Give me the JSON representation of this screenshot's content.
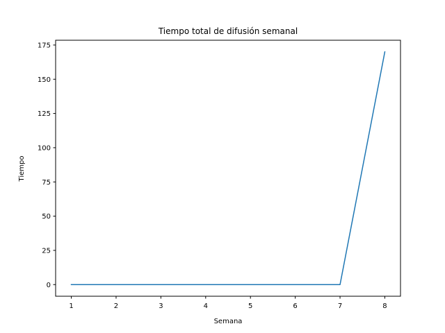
{
  "chart_data": {
    "type": "line",
    "title": "Tiempo total de difusión semanal",
    "xlabel": "Semana",
    "ylabel": "Tiempo",
    "x": [
      1,
      2,
      3,
      4,
      5,
      6,
      7,
      8
    ],
    "series": [
      {
        "values": [
          0,
          0,
          0,
          0,
          0,
          0,
          0,
          170
        ],
        "color": "#1f77b4"
      }
    ],
    "xlim": [
      0.65,
      8.35
    ],
    "ylim": [
      -8.5,
      178.5
    ],
    "xticks": [
      1,
      2,
      3,
      4,
      5,
      6,
      7,
      8
    ],
    "xtick_labels": [
      "1",
      "2",
      "3",
      "4",
      "5",
      "6",
      "7",
      "8"
    ],
    "yticks": [
      0,
      25,
      50,
      75,
      100,
      125,
      150,
      175
    ],
    "ytick_labels": [
      "0",
      "25",
      "50",
      "75",
      "100",
      "125",
      "150",
      "175"
    ],
    "grid": false,
    "legend": false
  }
}
